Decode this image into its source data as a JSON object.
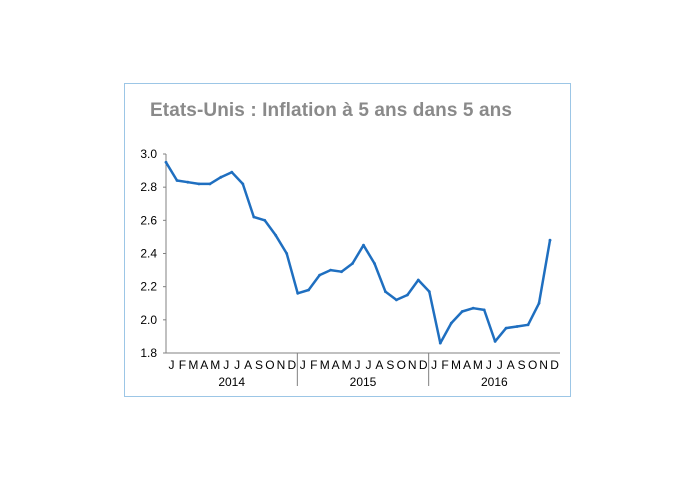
{
  "chart_data": {
    "type": "line",
    "title": "Etats-Unis : Inflation à 5 ans dans 5 ans",
    "xlabel": "",
    "ylabel": "",
    "ylim": [
      1.8,
      3.0
    ],
    "yticks": [
      "3.0",
      "2.8",
      "2.6",
      "2.4",
      "2.2",
      "2.0",
      "1.8"
    ],
    "grid": false,
    "legend": "none",
    "line_color": "#1f6fc0",
    "month_labels": [
      "J",
      "F",
      "M",
      "A",
      "M",
      "J",
      "J",
      "A",
      "S",
      "O",
      "N",
      "D",
      "J",
      "F",
      "M",
      "A",
      "M",
      "J",
      "J",
      "A",
      "S",
      "O",
      "N",
      "D",
      "J",
      "F",
      "M",
      "A",
      "M",
      "J",
      "J",
      "A",
      "S",
      "O",
      "N",
      "D"
    ],
    "years": [
      "2014",
      "2015",
      "2016"
    ],
    "series": [
      {
        "x": [
          "2014-01",
          "2014-02",
          "2014-03",
          "2014-04",
          "2014-05",
          "2014-06",
          "2014-07",
          "2014-08",
          "2014-09",
          "2014-10",
          "2014-11",
          "2014-12",
          "2015-01",
          "2015-02",
          "2015-03",
          "2015-04",
          "2015-05",
          "2015-06",
          "2015-07",
          "2015-08",
          "2015-09",
          "2015-10",
          "2015-11",
          "2015-12",
          "2016-01",
          "2016-02",
          "2016-03",
          "2016-04",
          "2016-05",
          "2016-06",
          "2016-07",
          "2016-08",
          "2016-09",
          "2016-10",
          "2016-11",
          "2016-12"
        ],
        "values": [
          2.95,
          2.84,
          2.83,
          2.82,
          2.82,
          2.86,
          2.89,
          2.82,
          2.62,
          2.6,
          2.51,
          2.4,
          2.16,
          2.18,
          2.27,
          2.3,
          2.29,
          2.34,
          2.45,
          2.34,
          2.17,
          2.12,
          2.15,
          2.24,
          2.17,
          1.86,
          1.98,
          2.05,
          2.07,
          2.06,
          1.87,
          1.95,
          1.96,
          1.97,
          2.1,
          2.48
        ]
      }
    ]
  }
}
